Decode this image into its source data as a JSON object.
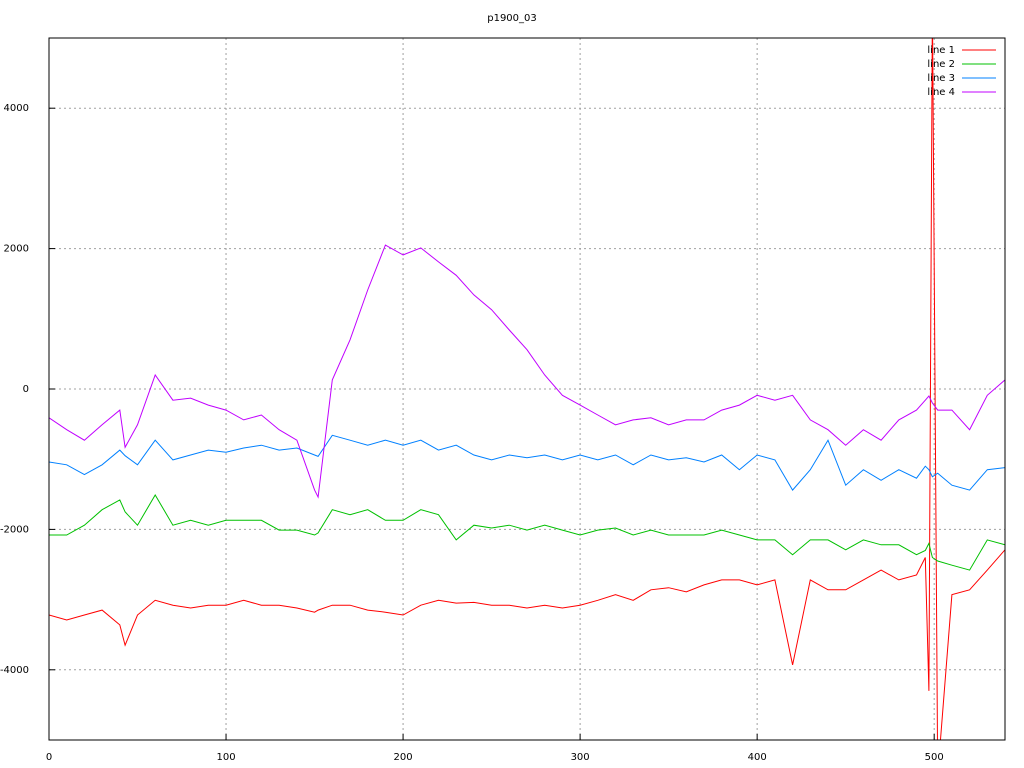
{
  "chart_data": {
    "type": "line",
    "title": "p1900_03",
    "x": [
      0,
      10,
      20,
      30,
      40,
      43,
      50,
      60,
      70,
      80,
      90,
      100,
      110,
      120,
      130,
      140,
      150,
      152,
      160,
      170,
      180,
      190,
      200,
      210,
      220,
      230,
      240,
      250,
      260,
      270,
      280,
      290,
      300,
      310,
      320,
      330,
      340,
      350,
      360,
      370,
      380,
      390,
      400,
      410,
      420,
      430,
      440,
      450,
      460,
      470,
      480,
      490,
      495,
      497,
      499,
      502,
      510,
      520,
      530,
      540
    ],
    "series": [
      {
        "name": "line 1",
        "color": "#ff0000",
        "values": [
          -3220,
          -3290,
          -3220,
          -3150,
          -3360,
          -3650,
          -3220,
          -3010,
          -3080,
          -3120,
          -3080,
          -3080,
          -3010,
          -3080,
          -3080,
          -3120,
          -3180,
          -3150,
          -3080,
          -3080,
          -3150,
          -3180,
          -3220,
          -3080,
          -3010,
          -3050,
          -3040,
          -3080,
          -3080,
          -3120,
          -3080,
          -3120,
          -3080,
          -3010,
          -2930,
          -3010,
          -2860,
          -2830,
          -2890,
          -2790,
          -2720,
          -2720,
          -2790,
          -2720,
          -3930,
          -2720,
          -2860,
          -2860,
          -2720,
          -2580,
          -2720,
          -2650,
          -2400,
          -4300,
          5500,
          -5500,
          -2930,
          -2860,
          -2580,
          -2290
        ]
      },
      {
        "name": "line 2",
        "color": "#00c000",
        "values": [
          -2080,
          -2080,
          -1940,
          -1720,
          -1580,
          -1750,
          -1940,
          -1510,
          -1940,
          -1870,
          -1940,
          -1870,
          -1870,
          -1870,
          -2010,
          -2010,
          -2080,
          -2050,
          -1720,
          -1790,
          -1720,
          -1870,
          -1870,
          -1720,
          -1790,
          -2150,
          -1940,
          -1980,
          -1940,
          -2010,
          -1940,
          -2010,
          -2080,
          -2010,
          -1980,
          -2080,
          -2010,
          -2080,
          -2080,
          -2080,
          -2010,
          -2080,
          -2150,
          -2150,
          -2360,
          -2150,
          -2150,
          -2290,
          -2150,
          -2220,
          -2220,
          -2360,
          -2300,
          -2200,
          -2400,
          -2450,
          -2510,
          -2580,
          -2150,
          -2220
        ]
      },
      {
        "name": "line 3",
        "color": "#0080ff",
        "values": [
          -1040,
          -1080,
          -1220,
          -1080,
          -870,
          -950,
          -1080,
          -730,
          -1010,
          -940,
          -870,
          -900,
          -840,
          -800,
          -870,
          -840,
          -940,
          -960,
          -660,
          -730,
          -800,
          -730,
          -800,
          -730,
          -870,
          -800,
          -940,
          -1010,
          -940,
          -980,
          -940,
          -1010,
          -940,
          -1010,
          -940,
          -1080,
          -940,
          -1010,
          -980,
          -1040,
          -940,
          -1150,
          -940,
          -1010,
          -1440,
          -1150,
          -730,
          -1370,
          -1150,
          -1300,
          -1150,
          -1270,
          -1100,
          -1150,
          -1250,
          -1200,
          -1370,
          -1440,
          -1150,
          -1120
        ]
      },
      {
        "name": "line 4",
        "color": "#c000ff",
        "values": [
          -410,
          -580,
          -730,
          -510,
          -300,
          -830,
          -510,
          200,
          -160,
          -130,
          -230,
          -300,
          -440,
          -370,
          -580,
          -730,
          -1440,
          -1540,
          130,
          700,
          1410,
          2050,
          1910,
          2010,
          1810,
          1620,
          1340,
          1130,
          840,
          560,
          200,
          -90,
          -230,
          -370,
          -510,
          -440,
          -410,
          -510,
          -440,
          -440,
          -300,
          -230,
          -90,
          -160,
          -90,
          -440,
          -580,
          -800,
          -580,
          -730,
          -440,
          -300,
          -160,
          -100,
          -200,
          -300,
          -300,
          -580,
          -90,
          130
        ]
      }
    ],
    "xlim": [
      0,
      540
    ],
    "ylim": [
      -5000,
      5000
    ],
    "xticks": [
      0,
      100,
      200,
      300,
      400,
      500
    ],
    "yticks": [
      -4000,
      -2000,
      0,
      2000,
      4000
    ],
    "grid": true,
    "legend": "top-right"
  }
}
